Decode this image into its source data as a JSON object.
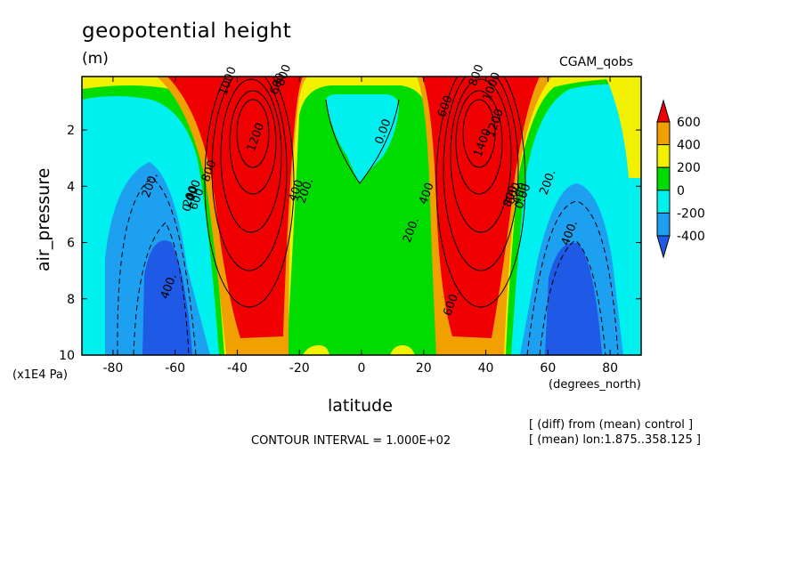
{
  "header": {
    "title": "geopotential height",
    "units": "(m)",
    "run": "CGAM_qobs"
  },
  "footer": {
    "contour_interval": "CONTOUR INTERVAL = 1.000E+02",
    "note_diff": "[ (diff) from (mean) control ]",
    "note_mean": "[ (mean) lon:1.875..358.125 ]"
  },
  "axes": {
    "xlabel": "latitude",
    "x_unit_label": "(degrees_north)",
    "ylabel": "air_pressure",
    "y_multiplier_label": "(x1E4 Pa)"
  },
  "colors": {
    "fill_below_-400": "#1e5ae6",
    "fill_-400_-200": "#1ea0f0",
    "fill_-200_0": "#00f0f0",
    "fill_0_200": "#00dc00",
    "fill_200_400": "#f0f000",
    "fill_400_600": "#f0a000",
    "fill_above_600": "#f00000"
  },
  "chart_data": {
    "type": "contour",
    "title": "geopotential height",
    "units": "(m)",
    "xlabel": "latitude",
    "ylabel": "air_pressure",
    "xlim": [
      -90,
      90
    ],
    "ylim": [
      0.1,
      10
    ],
    "y_inverted": true,
    "x_ticks": [
      -80,
      -60,
      -40,
      -20,
      0,
      20,
      40,
      60,
      80
    ],
    "x_tick_labels": [
      "-80",
      "-60",
      "-40",
      "-20",
      "0",
      "20",
      "40",
      "60",
      "80"
    ],
    "y_ticks": [
      2,
      4,
      6,
      8,
      10
    ],
    "y_tick_labels": [
      "2",
      "4",
      "6",
      "8",
      "10"
    ],
    "contour_interval": 100,
    "colorbar": {
      "levels": [
        -400,
        -200,
        0,
        200,
        400,
        600
      ],
      "labels": [
        "600",
        "400",
        "200",
        "0",
        "-200",
        "-400"
      ],
      "extend": "both"
    },
    "contour_labels": [
      {
        "text": "1000",
        "lat": -42,
        "p": 0.3
      },
      {
        "text": "800",
        "lat": -24,
        "p": 0.1
      },
      {
        "text": "600",
        "lat": -26,
        "p": 0.4
      },
      {
        "text": "1200",
        "lat": -33,
        "p": 2.3
      },
      {
        "text": "800",
        "lat": -48,
        "p": 3.5
      },
      {
        "text": "600",
        "lat": -52,
        "p": 4.5
      },
      {
        "text": "400",
        "lat": -53,
        "p": 4.2
      },
      {
        "text": "200",
        "lat": -54,
        "p": 4.4
      },
      {
        "text": "0.00",
        "lat": -54,
        "p": 4.5
      },
      {
        "text": "200.",
        "lat": -67,
        "p": 4.0
      },
      {
        "text": "400.",
        "lat": -61,
        "p": 7.6
      },
      {
        "text": "400",
        "lat": -20,
        "p": 4.2
      },
      {
        "text": "200.",
        "lat": -17,
        "p": 4.2
      },
      {
        "text": "0.00",
        "lat": 8,
        "p": 2.1
      },
      {
        "text": "400",
        "lat": 22,
        "p": 4.3
      },
      {
        "text": "200.",
        "lat": 17,
        "p": 5.6
      },
      {
        "text": "600.",
        "lat": 30,
        "p": 8.2
      },
      {
        "text": "600",
        "lat": 28,
        "p": 1.2
      },
      {
        "text": "800",
        "lat": 38,
        "p": 0.1
      },
      {
        "text": "1000",
        "lat": 43,
        "p": 0.5
      },
      {
        "text": "1400",
        "lat": 40,
        "p": 2.5
      },
      {
        "text": "1200",
        "lat": 44,
        "p": 1.8
      },
      {
        "text": "800",
        "lat": 49,
        "p": 4.4
      },
      {
        "text": "600",
        "lat": 50,
        "p": 4.3
      },
      {
        "text": "400",
        "lat": 52,
        "p": 4.3
      },
      {
        "text": "0.00",
        "lat": 53,
        "p": 4.4
      },
      {
        "text": "200.",
        "lat": 61,
        "p": 3.9
      },
      {
        "text": "400.",
        "lat": 68,
        "p": 5.7
      }
    ]
  }
}
